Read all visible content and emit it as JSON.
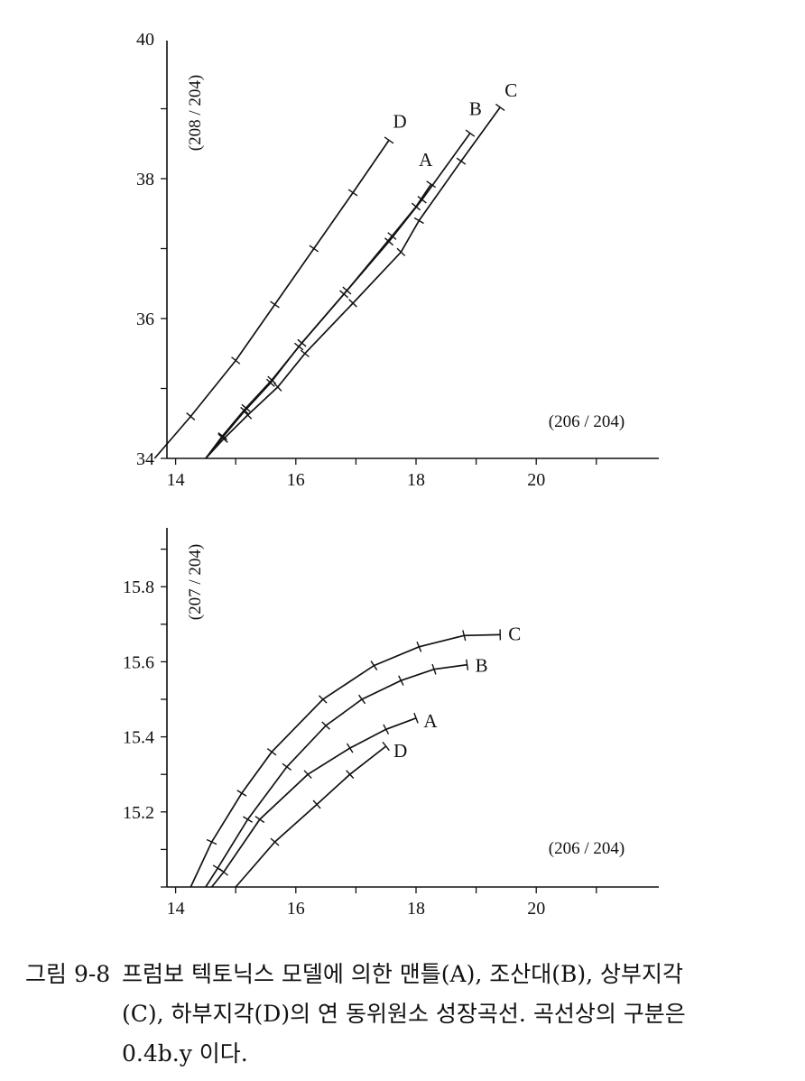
{
  "chart_data": [
    {
      "type": "line",
      "xlabel": "(206 / 204)",
      "ylabel": "(208 / 204)",
      "xlim": [
        13,
        21
      ],
      "ylim": [
        34,
        40
      ],
      "x_ticks": [
        "14",
        "16",
        "18",
        "20"
      ],
      "y_ticks": [
        "34",
        "36",
        "38",
        "40"
      ],
      "series": [
        {
          "name": "D",
          "points": [
            [
              13.65,
              34.0
            ],
            [
              14.25,
              34.6
            ],
            [
              15.0,
              35.4
            ],
            [
              15.65,
              36.2
            ],
            [
              16.3,
              37.0
            ],
            [
              16.95,
              37.8
            ],
            [
              17.55,
              38.55
            ]
          ]
        },
        {
          "name": "A",
          "points": [
            [
              14.5,
              34.0
            ],
            [
              14.78,
              34.32
            ],
            [
              15.17,
              34.72
            ],
            [
              15.6,
              35.12
            ],
            [
              16.1,
              35.65
            ],
            [
              16.85,
              36.4
            ],
            [
              17.6,
              37.18
            ],
            [
              18.0,
              37.6
            ],
            [
              18.25,
              37.92
            ]
          ]
        },
        {
          "name": "B",
          "points": [
            [
              14.5,
              34.0
            ],
            [
              14.78,
              34.3
            ],
            [
              15.15,
              34.68
            ],
            [
              15.58,
              35.08
            ],
            [
              16.05,
              35.6
            ],
            [
              16.8,
              36.35
            ],
            [
              17.55,
              37.1
            ],
            [
              18.1,
              37.7
            ],
            [
              18.9,
              38.65
            ]
          ]
        },
        {
          "name": "C",
          "points": [
            [
              14.5,
              34.0
            ],
            [
              14.8,
              34.28
            ],
            [
              15.2,
              34.62
            ],
            [
              15.7,
              35.02
            ],
            [
              16.15,
              35.5
            ],
            [
              16.95,
              36.22
            ],
            [
              17.75,
              36.95
            ],
            [
              18.05,
              37.4
            ],
            [
              18.75,
              38.25
            ],
            [
              19.4,
              39.02
            ]
          ]
        }
      ],
      "point_labels": [
        "D",
        "A",
        "B",
        "C"
      ]
    },
    {
      "type": "line",
      "xlabel": "(206 / 204)",
      "ylabel": "(207 / 204)",
      "xlim": [
        13,
        21
      ],
      "ylim": [
        15.0,
        15.95
      ],
      "x_ticks": [
        "14",
        "16",
        "18",
        "20"
      ],
      "y_ticks": [
        "15.2",
        "15.4",
        "15.6",
        "15.8"
      ],
      "series": [
        {
          "name": "C",
          "points": [
            [
              14.25,
              15.0
            ],
            [
              14.6,
              15.12
            ],
            [
              15.1,
              15.25
            ],
            [
              15.6,
              15.36
            ],
            [
              16.45,
              15.5
            ],
            [
              17.3,
              15.59
            ],
            [
              18.05,
              15.64
            ],
            [
              18.8,
              15.67
            ],
            [
              19.4,
              15.672
            ]
          ]
        },
        {
          "name": "B",
          "points": [
            [
              14.5,
              15.0
            ],
            [
              14.7,
              15.05
            ],
            [
              15.2,
              15.18
            ],
            [
              15.85,
              15.32
            ],
            [
              16.5,
              15.43
            ],
            [
              17.1,
              15.5
            ],
            [
              17.75,
              15.55
            ],
            [
              18.3,
              15.58
            ],
            [
              18.85,
              15.592
            ]
          ]
        },
        {
          "name": "A",
          "points": [
            [
              14.6,
              15.0
            ],
            [
              14.8,
              15.04
            ],
            [
              15.4,
              15.18
            ],
            [
              16.2,
              15.3
            ],
            [
              16.9,
              15.37
            ],
            [
              17.5,
              15.42
            ],
            [
              18.0,
              15.45
            ]
          ]
        },
        {
          "name": "D",
          "points": [
            [
              15.0,
              15.0
            ],
            [
              15.0,
              15.0
            ],
            [
              15.65,
              15.12
            ],
            [
              16.35,
              15.22
            ],
            [
              16.9,
              15.3
            ],
            [
              17.5,
              15.375
            ]
          ]
        }
      ],
      "point_labels": [
        "C",
        "B",
        "A",
        "D"
      ]
    }
  ],
  "caption": {
    "label": "그림 9-8",
    "line1": "프럼보 텍토닉스 모델에 의한 맨틀(A), 조산대(B), 상부지각",
    "line2": "(C), 하부지각(D)의 연 동위원소 성장곡선. 곡선상의 구분은",
    "line3": "0.4b.y 이다."
  }
}
